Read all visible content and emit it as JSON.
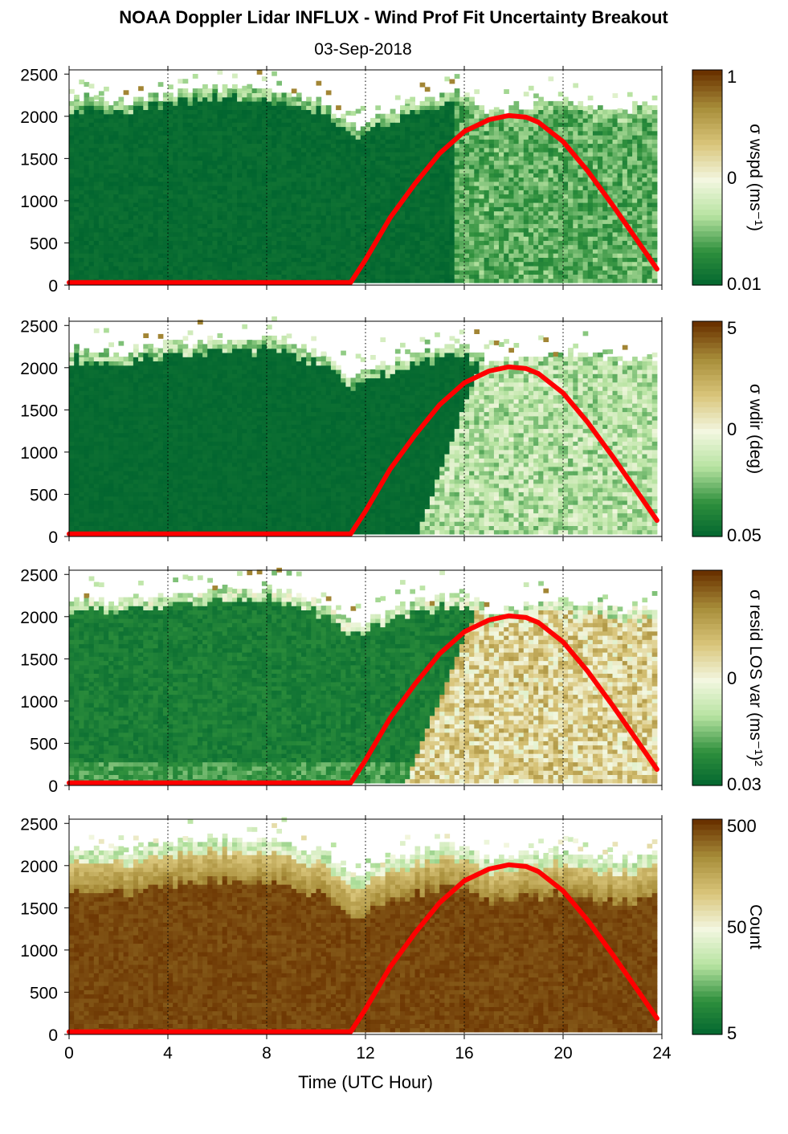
{
  "figure": {
    "title": "NOAA Doppler Lidar INFLUX - Wind Prof Fit Uncertainty Breakout",
    "subtitle": "03-Sep-2018",
    "xlabel": "Time (UTC Hour)",
    "xticks": [
      "0",
      "4",
      "8",
      "12",
      "16",
      "20",
      "24"
    ],
    "yticks": [
      "0",
      "500",
      "1000",
      "1500",
      "2000",
      "2500"
    ]
  },
  "colors": {
    "dark_green": "#00642f",
    "mid_green": "#2e8f3c",
    "light_green": "#b7e3a1",
    "pale": "#f3f7e0",
    "tan": "#d9c57a",
    "olive": "#a88e3a",
    "brown": "#6a3200",
    "red_line": "#ff0000"
  },
  "chart_data": [
    {
      "type": "heatmap",
      "panel": "sigma-wspd",
      "x": [
        0,
        24
      ],
      "xlim": [
        0,
        24
      ],
      "ylim": [
        0,
        2550
      ],
      "colorbar_label": "σ wspd (ms⁻¹)",
      "colorbar_ticks": [
        "1",
        "0",
        "0.01"
      ],
      "top_height_profile": {
        "t": [
          0,
          2,
          4,
          6,
          8,
          10,
          11.5,
          12,
          14,
          16,
          17,
          18,
          20,
          22,
          23.8
        ],
        "h": [
          2200,
          2150,
          2250,
          2300,
          2300,
          2150,
          1850,
          1950,
          2150,
          2250,
          2000,
          2100,
          2150,
          2050,
          2100
        ]
      },
      "series": [
        {
          "name": "",
          "type": "line",
          "x": [
            0,
            11.4,
            12,
            13,
            14,
            15,
            16,
            17,
            17.8,
            18.5,
            19,
            20,
            21,
            22,
            23,
            23.8
          ],
          "y": [
            30,
            30,
            300,
            800,
            1200,
            1560,
            1820,
            1960,
            2010,
            1990,
            1930,
            1700,
            1350,
            950,
            530,
            190
          ]
        }
      ]
    },
    {
      "type": "heatmap",
      "panel": "sigma-wdir",
      "x": [
        0,
        24
      ],
      "xlim": [
        0,
        24
      ],
      "ylim": [
        0,
        2550
      ],
      "colorbar_label": "σ wdir (deg)",
      "colorbar_ticks": [
        "5",
        "0",
        "0.05"
      ],
      "top_height_profile": {
        "t": [
          0,
          2,
          4,
          6,
          8,
          10,
          11.5,
          12,
          14,
          16,
          17,
          18,
          20,
          22,
          23.8
        ],
        "h": [
          2200,
          2150,
          2250,
          2300,
          2300,
          2150,
          1850,
          1950,
          2150,
          2250,
          2000,
          2100,
          2150,
          2050,
          2100
        ]
      },
      "series": [
        {
          "name": "",
          "type": "line",
          "x": [
            0,
            11.4,
            12,
            13,
            14,
            15,
            16,
            17,
            17.8,
            18.5,
            19,
            20,
            21,
            22,
            23,
            23.8
          ],
          "y": [
            30,
            30,
            300,
            800,
            1200,
            1560,
            1820,
            1960,
            2010,
            1990,
            1930,
            1700,
            1350,
            950,
            530,
            190
          ]
        }
      ]
    },
    {
      "type": "heatmap",
      "panel": "sigma-resid-los-var",
      "x": [
        0,
        24
      ],
      "xlim": [
        0,
        24
      ],
      "ylim": [
        0,
        2550
      ],
      "colorbar_label": "σ resid LOS var (ms⁻¹)²",
      "colorbar_ticks": [
        "",
        "0",
        "0.03"
      ],
      "top_height_profile": {
        "t": [
          0,
          2,
          4,
          6,
          8,
          10,
          11.5,
          12,
          14,
          16,
          17,
          18,
          20,
          22,
          23.8
        ],
        "h": [
          2200,
          2150,
          2250,
          2300,
          2300,
          2150,
          1850,
          1950,
          2150,
          2250,
          2000,
          2100,
          2150,
          2050,
          2100
        ]
      },
      "series": [
        {
          "name": "",
          "type": "line",
          "x": [
            0,
            11.4,
            12,
            13,
            14,
            15,
            16,
            17,
            17.8,
            18.5,
            19,
            20,
            21,
            22,
            23,
            23.8
          ],
          "y": [
            30,
            30,
            300,
            800,
            1200,
            1560,
            1820,
            1960,
            2010,
            1990,
            1930,
            1700,
            1350,
            950,
            530,
            190
          ]
        }
      ]
    },
    {
      "type": "heatmap",
      "panel": "count",
      "x": [
        0,
        24
      ],
      "xlim": [
        0,
        24
      ],
      "ylim": [
        0,
        2550
      ],
      "colorbar_label": "Count",
      "colorbar_ticks": [
        "500",
        "50",
        "5"
      ],
      "top_height_profile": {
        "t": [
          0,
          2,
          4,
          6,
          8,
          10,
          11.5,
          12,
          14,
          16,
          17,
          18,
          20,
          22,
          23.8
        ],
        "h": [
          2200,
          2150,
          2250,
          2300,
          2300,
          2150,
          1850,
          1950,
          2150,
          2250,
          2000,
          2100,
          2150,
          2050,
          2100
        ]
      },
      "series": [
        {
          "name": "",
          "type": "line",
          "x": [
            0,
            11.4,
            12,
            13,
            14,
            15,
            16,
            17,
            17.8,
            18.5,
            19,
            20,
            21,
            22,
            23,
            23.8
          ],
          "y": [
            30,
            30,
            300,
            800,
            1200,
            1560,
            1820,
            1960,
            2010,
            1990,
            1930,
            1700,
            1350,
            950,
            530,
            190
          ]
        }
      ]
    }
  ]
}
